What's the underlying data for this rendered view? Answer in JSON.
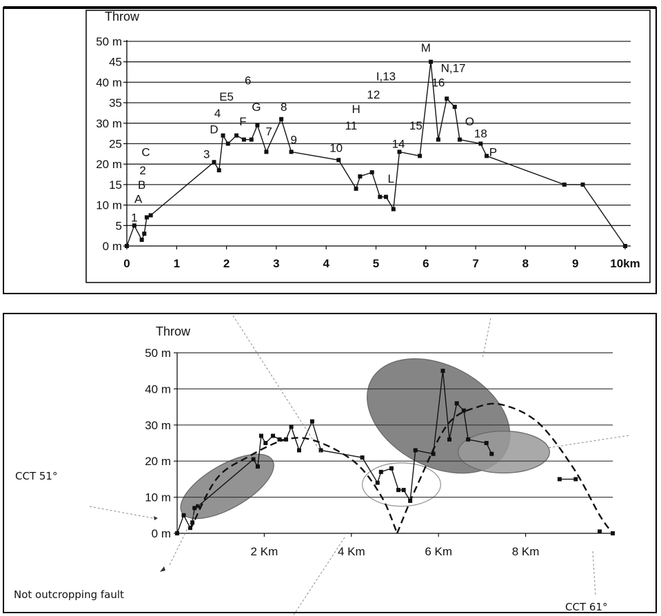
{
  "chart_data": [
    {
      "type": "line",
      "ylabel": "Throw",
      "xlim": [
        0,
        10
      ],
      "ylim": [
        0,
        50
      ],
      "yticks": [
        {
          "value": 0,
          "label": "0 m"
        },
        {
          "value": 5,
          "label": "5"
        },
        {
          "value": 10,
          "label": "10 m"
        },
        {
          "value": 15,
          "label": "15"
        },
        {
          "value": 20,
          "label": "20 m"
        },
        {
          "value": 25,
          "label": "25"
        },
        {
          "value": 30,
          "label": "30 m"
        },
        {
          "value": 35,
          "label": "35"
        },
        {
          "value": 40,
          "label": "40 m"
        },
        {
          "value": 45,
          "label": "45"
        },
        {
          "value": 50,
          "label": "50 m"
        }
      ],
      "xticks": [
        {
          "value": 0,
          "label": "0"
        },
        {
          "value": 1,
          "label": "1"
        },
        {
          "value": 2,
          "label": "2"
        },
        {
          "value": 3,
          "label": "3"
        },
        {
          "value": 4,
          "label": "4"
        },
        {
          "value": 5,
          "label": "5"
        },
        {
          "value": 6,
          "label": "6"
        },
        {
          "value": 7,
          "label": "7"
        },
        {
          "value": 8,
          "label": "8"
        },
        {
          "value": 9,
          "label": "9"
        },
        {
          "value": 10,
          "label": "10km"
        }
      ],
      "grid": "horizontal",
      "points": [
        [
          0,
          0
        ],
        [
          0.15,
          5
        ],
        [
          0.3,
          1.5
        ],
        [
          0.35,
          3
        ],
        [
          0.4,
          7
        ],
        [
          0.48,
          7.5
        ],
        [
          1.75,
          20.5
        ],
        [
          1.85,
          18.5
        ],
        [
          1.93,
          27
        ],
        [
          2.03,
          25
        ],
        [
          2.2,
          27
        ],
        [
          2.35,
          26
        ],
        [
          2.5,
          26
        ],
        [
          2.62,
          29.5
        ],
        [
          2.8,
          23
        ],
        [
          3.1,
          31
        ],
        [
          3.3,
          23
        ],
        [
          4.25,
          21
        ],
        [
          4.6,
          14
        ],
        [
          4.68,
          17
        ],
        [
          4.92,
          18
        ],
        [
          5.08,
          12
        ],
        [
          5.2,
          12
        ],
        [
          5.35,
          9
        ],
        [
          5.47,
          23
        ],
        [
          5.88,
          22
        ],
        [
          6.1,
          45
        ],
        [
          6.25,
          26
        ],
        [
          6.42,
          36
        ],
        [
          6.58,
          34
        ],
        [
          6.68,
          26
        ],
        [
          7.1,
          25
        ],
        [
          7.22,
          22
        ],
        [
          8.78,
          15
        ],
        [
          9.15,
          15
        ],
        [
          10,
          0
        ]
      ],
      "point_labels": [
        {
          "text": "1",
          "x": 0.15,
          "y": 7
        },
        {
          "text": "A",
          "x": 0.23,
          "y": 11.5
        },
        {
          "text": "B",
          "x": 0.3,
          "y": 15
        },
        {
          "text": "2",
          "x": 0.32,
          "y": 18.5
        },
        {
          "text": "C",
          "x": 0.38,
          "y": 23
        },
        {
          "text": "3",
          "x": 1.6,
          "y": 22.5
        },
        {
          "text": "D",
          "x": 1.75,
          "y": 28.5
        },
        {
          "text": "4",
          "x": 1.82,
          "y": 32.5
        },
        {
          "text": "E5",
          "x": 2.0,
          "y": 36.5
        },
        {
          "text": "6",
          "x": 2.43,
          "y": 40.5
        },
        {
          "text": "F",
          "x": 2.33,
          "y": 30.5
        },
        {
          "text": "G",
          "x": 2.6,
          "y": 34
        },
        {
          "text": "7",
          "x": 2.85,
          "y": 28
        },
        {
          "text": "8",
          "x": 3.15,
          "y": 34
        },
        {
          "text": "9",
          "x": 3.35,
          "y": 26
        },
        {
          "text": "10",
          "x": 4.2,
          "y": 24
        },
        {
          "text": "11",
          "x": 4.5,
          "y": 29.5
        },
        {
          "text": "H",
          "x": 4.6,
          "y": 33.5
        },
        {
          "text": "12",
          "x": 4.95,
          "y": 37
        },
        {
          "text": "I,13",
          "x": 5.2,
          "y": 41.5
        },
        {
          "text": "14",
          "x": 5.45,
          "y": 25
        },
        {
          "text": "15",
          "x": 5.8,
          "y": 29.5
        },
        {
          "text": "L",
          "x": 5.3,
          "y": 16.5
        },
        {
          "text": "M",
          "x": 6.0,
          "y": 48.5
        },
        {
          "text": "N,17",
          "x": 6.55,
          "y": 43.5
        },
        {
          "text": "16",
          "x": 6.25,
          "y": 40
        },
        {
          "text": "O",
          "x": 6.88,
          "y": 30.5
        },
        {
          "text": "18",
          "x": 7.1,
          "y": 27.5
        },
        {
          "text": "P",
          "x": 7.35,
          "y": 23
        }
      ]
    },
    {
      "type": "line",
      "ylabel": "Throw",
      "xlim": [
        0,
        10
      ],
      "ylim": [
        0,
        50
      ],
      "yticks": [
        {
          "value": 0,
          "label": "0 m"
        },
        {
          "value": 10,
          "label": "10 m"
        },
        {
          "value": 20,
          "label": "20 m"
        },
        {
          "value": 30,
          "label": "30 m"
        },
        {
          "value": 40,
          "label": "40 m"
        },
        {
          "value": 50,
          "label": "50 m"
        }
      ],
      "xticks": [
        {
          "value": 2,
          "label": "2 Km"
        },
        {
          "value": 4,
          "label": "4 Km"
        },
        {
          "value": 6,
          "label": "6 Km"
        },
        {
          "value": 8,
          "label": "8 Km"
        }
      ],
      "grid": "horizontal",
      "points": [
        [
          0,
          0
        ],
        [
          0.15,
          5
        ],
        [
          0.3,
          1.5
        ],
        [
          0.35,
          3
        ],
        [
          0.4,
          7
        ],
        [
          0.48,
          7.5
        ],
        [
          1.75,
          20.5
        ],
        [
          1.85,
          18.5
        ],
        [
          1.93,
          27
        ],
        [
          2.03,
          25
        ],
        [
          2.2,
          27
        ],
        [
          2.35,
          26
        ],
        [
          2.5,
          26
        ],
        [
          2.62,
          29.5
        ],
        [
          2.8,
          23
        ],
        [
          3.1,
          31
        ],
        [
          3.3,
          23
        ],
        [
          4.25,
          21
        ],
        [
          4.6,
          14
        ],
        [
          4.68,
          17
        ],
        [
          4.92,
          18
        ],
        [
          5.08,
          12
        ],
        [
          5.2,
          12
        ],
        [
          5.35,
          9
        ],
        [
          5.47,
          23
        ],
        [
          5.88,
          22
        ],
        [
          6.1,
          45
        ],
        [
          6.25,
          26
        ],
        [
          6.42,
          36
        ],
        [
          6.58,
          34
        ],
        [
          6.68,
          26
        ],
        [
          7.1,
          25
        ],
        [
          7.22,
          22
        ]
      ],
      "isolated_segments": [
        [
          [
            8.78,
            15
          ],
          [
            9.15,
            15
          ]
        ],
        [
          [
            9.7,
            0.5
          ]
        ],
        [
          [
            10,
            0
          ]
        ]
      ],
      "dashed_envelopes": [
        [
          [
            0.3,
            1
          ],
          [
            0.9,
            15
          ],
          [
            1.6,
            21
          ],
          [
            2.5,
            26
          ],
          [
            3.2,
            25.5
          ],
          [
            4.1,
            19.5
          ],
          [
            4.7,
            10
          ],
          [
            5.05,
            0
          ]
        ],
        [
          [
            5.05,
            0
          ],
          [
            5.5,
            13
          ],
          [
            6.2,
            30
          ],
          [
            6.9,
            35
          ],
          [
            7.5,
            35.5
          ],
          [
            8.3,
            30.5
          ],
          [
            9.1,
            18
          ],
          [
            9.7,
            5
          ],
          [
            10,
            0
          ]
        ]
      ],
      "ellipses": [
        {
          "cx": 1.15,
          "cy": 13,
          "rx": 1.2,
          "ry": 6,
          "angle": -30,
          "fill": "#808080"
        },
        {
          "cx": 5.15,
          "cy": 13.5,
          "rx": 0.9,
          "ry": 6,
          "angle": 0,
          "fill": "none"
        },
        {
          "cx": 6.0,
          "cy": 32.5,
          "rx": 1.75,
          "ry": 14,
          "angle": 28,
          "fill": "#707070"
        },
        {
          "cx": 7.5,
          "cy": 22.5,
          "rx": 1.05,
          "ry": 5.8,
          "angle": 0,
          "fill": "#9a9a9a"
        }
      ],
      "annotations": [
        {
          "text": "CCT 51°"
        },
        {
          "text": "Not outcropping fault"
        },
        {
          "text": "CCT 61°"
        }
      ]
    }
  ],
  "colors": {
    "series": "#111111",
    "grid": "#222222",
    "frame": "#000000",
    "ellipse_dark": "#707070",
    "ellipse_mid": "#808080",
    "ellipse_light": "#9a9a9a"
  }
}
